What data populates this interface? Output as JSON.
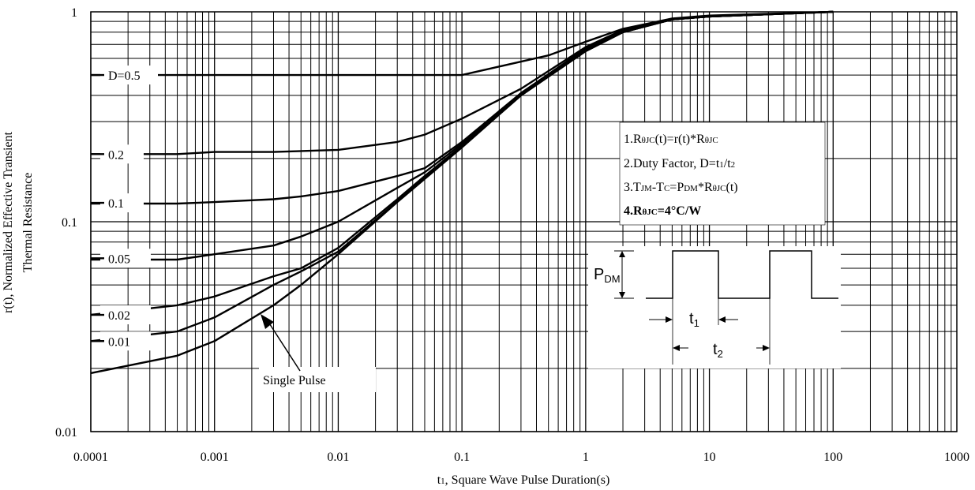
{
  "chart_data": {
    "type": "line",
    "title": "",
    "xlabel": "t₁, Square Wave Pulse Duration(s)",
    "ylabel": "r(t), Normalized Effective Transient Thermal Resistance",
    "xlabel_pre": "t",
    "xlabel_sub": "1",
    "xlabel_post": ", Square Wave Pulse Duration(s)",
    "ylabel_line1": "r(t), Normalized Effective Transient",
    "ylabel_line2": "Thermal Resistance",
    "xscale": "log",
    "yscale": "log",
    "xlim": [
      0.0001,
      1000
    ],
    "ylim": [
      0.01,
      1
    ],
    "grid": true,
    "x_ticks": [
      {
        "v": 0.0001,
        "label": "0.0001"
      },
      {
        "v": 0.001,
        "label": "0.001"
      },
      {
        "v": 0.01,
        "label": "0.01"
      },
      {
        "v": 0.1,
        "label": "0.1"
      },
      {
        "v": 1,
        "label": "1"
      },
      {
        "v": 10,
        "label": "10"
      },
      {
        "v": 100,
        "label": "100"
      },
      {
        "v": 1000,
        "label": "1000"
      }
    ],
    "y_ticks": [
      {
        "v": 1,
        "label": "1"
      },
      {
        "v": 0.1,
        "label": "0.1"
      },
      {
        "v": 0.01,
        "label": "0.01"
      }
    ],
    "series": [
      {
        "name": "D=0.5",
        "label_v": 0.5,
        "x": [
          0.0001,
          0.001,
          0.01,
          0.1,
          0.5,
          1,
          2,
          5,
          10,
          100
        ],
        "y": [
          0.5,
          0.5,
          0.5,
          0.5,
          0.62,
          0.72,
          0.83,
          0.93,
          0.96,
          1.0
        ]
      },
      {
        "name": "0.2",
        "label_v": 0.21,
        "x": [
          0.0001,
          0.0005,
          0.001,
          0.003,
          0.01,
          0.03,
          0.05,
          0.1,
          0.3,
          1,
          2,
          5,
          10,
          100
        ],
        "y": [
          0.21,
          0.21,
          0.215,
          0.215,
          0.22,
          0.24,
          0.26,
          0.31,
          0.43,
          0.68,
          0.82,
          0.92,
          0.95,
          1.0
        ]
      },
      {
        "name": "0.1",
        "label_v": 0.123,
        "x": [
          0.0001,
          0.0005,
          0.001,
          0.003,
          0.005,
          0.01,
          0.03,
          0.05,
          0.1,
          0.3,
          1,
          2,
          5,
          10,
          100
        ],
        "y": [
          0.122,
          0.122,
          0.124,
          0.128,
          0.132,
          0.14,
          0.165,
          0.18,
          0.24,
          0.41,
          0.67,
          0.81,
          0.92,
          0.95,
          1.0
        ]
      },
      {
        "name": "0.05",
        "label_v": 0.067,
        "x": [
          0.0001,
          0.0005,
          0.001,
          0.003,
          0.005,
          0.01,
          0.03,
          0.05,
          0.1,
          0.3,
          1,
          2,
          5,
          10,
          100
        ],
        "y": [
          0.066,
          0.066,
          0.07,
          0.077,
          0.085,
          0.1,
          0.145,
          0.172,
          0.235,
          0.41,
          0.66,
          0.8,
          0.92,
          0.95,
          1.0
        ]
      },
      {
        "name": "0.02",
        "label_v": 0.036,
        "x": [
          0.0001,
          0.0005,
          0.001,
          0.003,
          0.005,
          0.01,
          0.03,
          0.05,
          0.1,
          0.3,
          1,
          2,
          5,
          10,
          100
        ],
        "y": [
          0.036,
          0.04,
          0.044,
          0.055,
          0.06,
          0.075,
          0.128,
          0.165,
          0.23,
          0.4,
          0.65,
          0.8,
          0.92,
          0.95,
          1.0
        ]
      },
      {
        "name": "0.01",
        "label_v": 0.027,
        "x": [
          0.0001,
          0.0005,
          0.001,
          0.003,
          0.005,
          0.01,
          0.03,
          0.05,
          0.1,
          0.3,
          1,
          2,
          5,
          10,
          100
        ],
        "y": [
          0.027,
          0.03,
          0.035,
          0.05,
          0.058,
          0.072,
          0.125,
          0.162,
          0.228,
          0.4,
          0.65,
          0.8,
          0.92,
          0.95,
          1.0
        ]
      },
      {
        "name": "Single Pulse",
        "x": [
          0.0001,
          0.0005,
          0.001,
          0.003,
          0.005,
          0.01,
          0.03,
          0.05,
          0.1,
          0.3,
          1,
          2,
          5,
          10,
          100
        ],
        "y": [
          0.019,
          0.023,
          0.027,
          0.04,
          0.05,
          0.07,
          0.124,
          0.16,
          0.226,
          0.4,
          0.65,
          0.8,
          0.92,
          0.95,
          1.0
        ]
      }
    ],
    "single_pulse_label": "Single Pulse",
    "notes": [
      {
        "pre": "1.R",
        "sub1": "θJC",
        "mid": "(t)=r(t)*R",
        "sub2": "θJC",
        "post": ""
      },
      {
        "pre": "2.Duty Factor, D=t",
        "sub1": "1",
        "mid": "/t",
        "sub2": "2",
        "post": ""
      },
      {
        "pre": "3.T",
        "sub1": "JM",
        "mid": "-T",
        "sub2": "C",
        "post": "=P",
        "sub3": "DM",
        "post2": "*R",
        "sub4": "θJC",
        "post3": "(t)"
      },
      {
        "pre": "4.R",
        "sub1": "θJC",
        "mid": "=4°C/W",
        "sub2": "",
        "post": ""
      }
    ],
    "pulse_diagram": {
      "pdm_main": "P",
      "pdm_sub": "DM",
      "t1_main": "t",
      "t1_sub": "1",
      "t2_main": "t",
      "t2_sub": "2"
    }
  }
}
